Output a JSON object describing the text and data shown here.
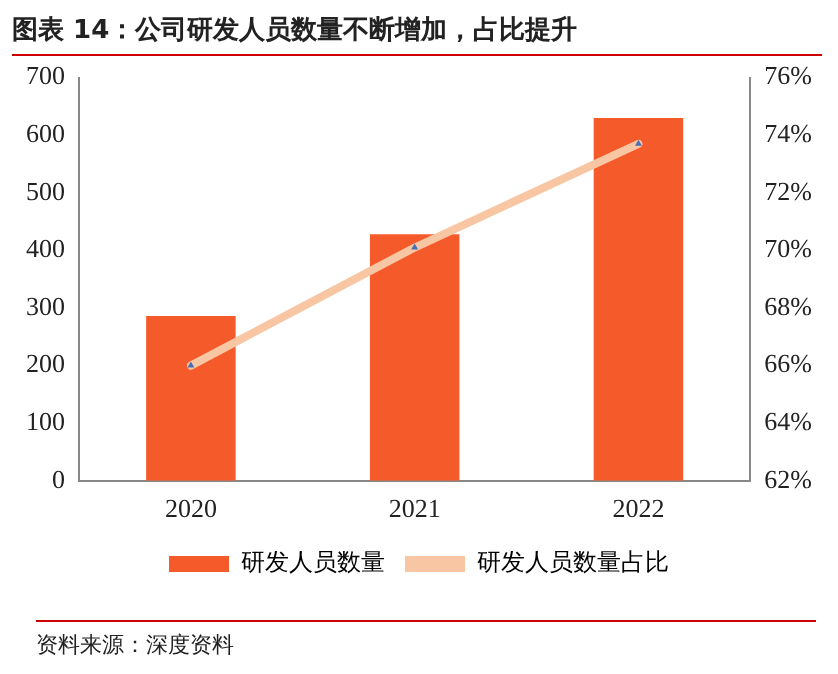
{
  "chart_data": {
    "type": "bar",
    "title": "图表 14：公司研发人员数量不断增加，占比提升",
    "categories": [
      "2020",
      "2021",
      "2022"
    ],
    "series": [
      {
        "name": "研发人员数量",
        "color": "#f55a2a",
        "values": [
          286,
          428,
          630
        ]
      },
      {
        "name": "研发人员数量占比",
        "type": "line",
        "axis": "y2",
        "color": "#f8c6a3",
        "marker": "triangle",
        "values": [
          66.0,
          70.1,
          73.7
        ]
      }
    ],
    "ylim": [
      0,
      700
    ],
    "yticks": [
      0,
      100,
      200,
      300,
      400,
      500,
      600,
      700
    ],
    "y2lim": [
      62,
      76
    ],
    "y2ticks": [
      {
        "value": 62,
        "label": "62%"
      },
      {
        "value": 64,
        "label": "64%"
      },
      {
        "value": 66,
        "label": "66%"
      },
      {
        "value": 68,
        "label": "68%"
      },
      {
        "value": 70,
        "label": "70%"
      },
      {
        "value": 72,
        "label": "72%"
      },
      {
        "value": 74,
        "label": "74%"
      },
      {
        "value": 76,
        "label": "76%"
      }
    ],
    "grid": false,
    "legend": "bottom",
    "annotations": [
      "资料来源：深度资料"
    ]
  }
}
